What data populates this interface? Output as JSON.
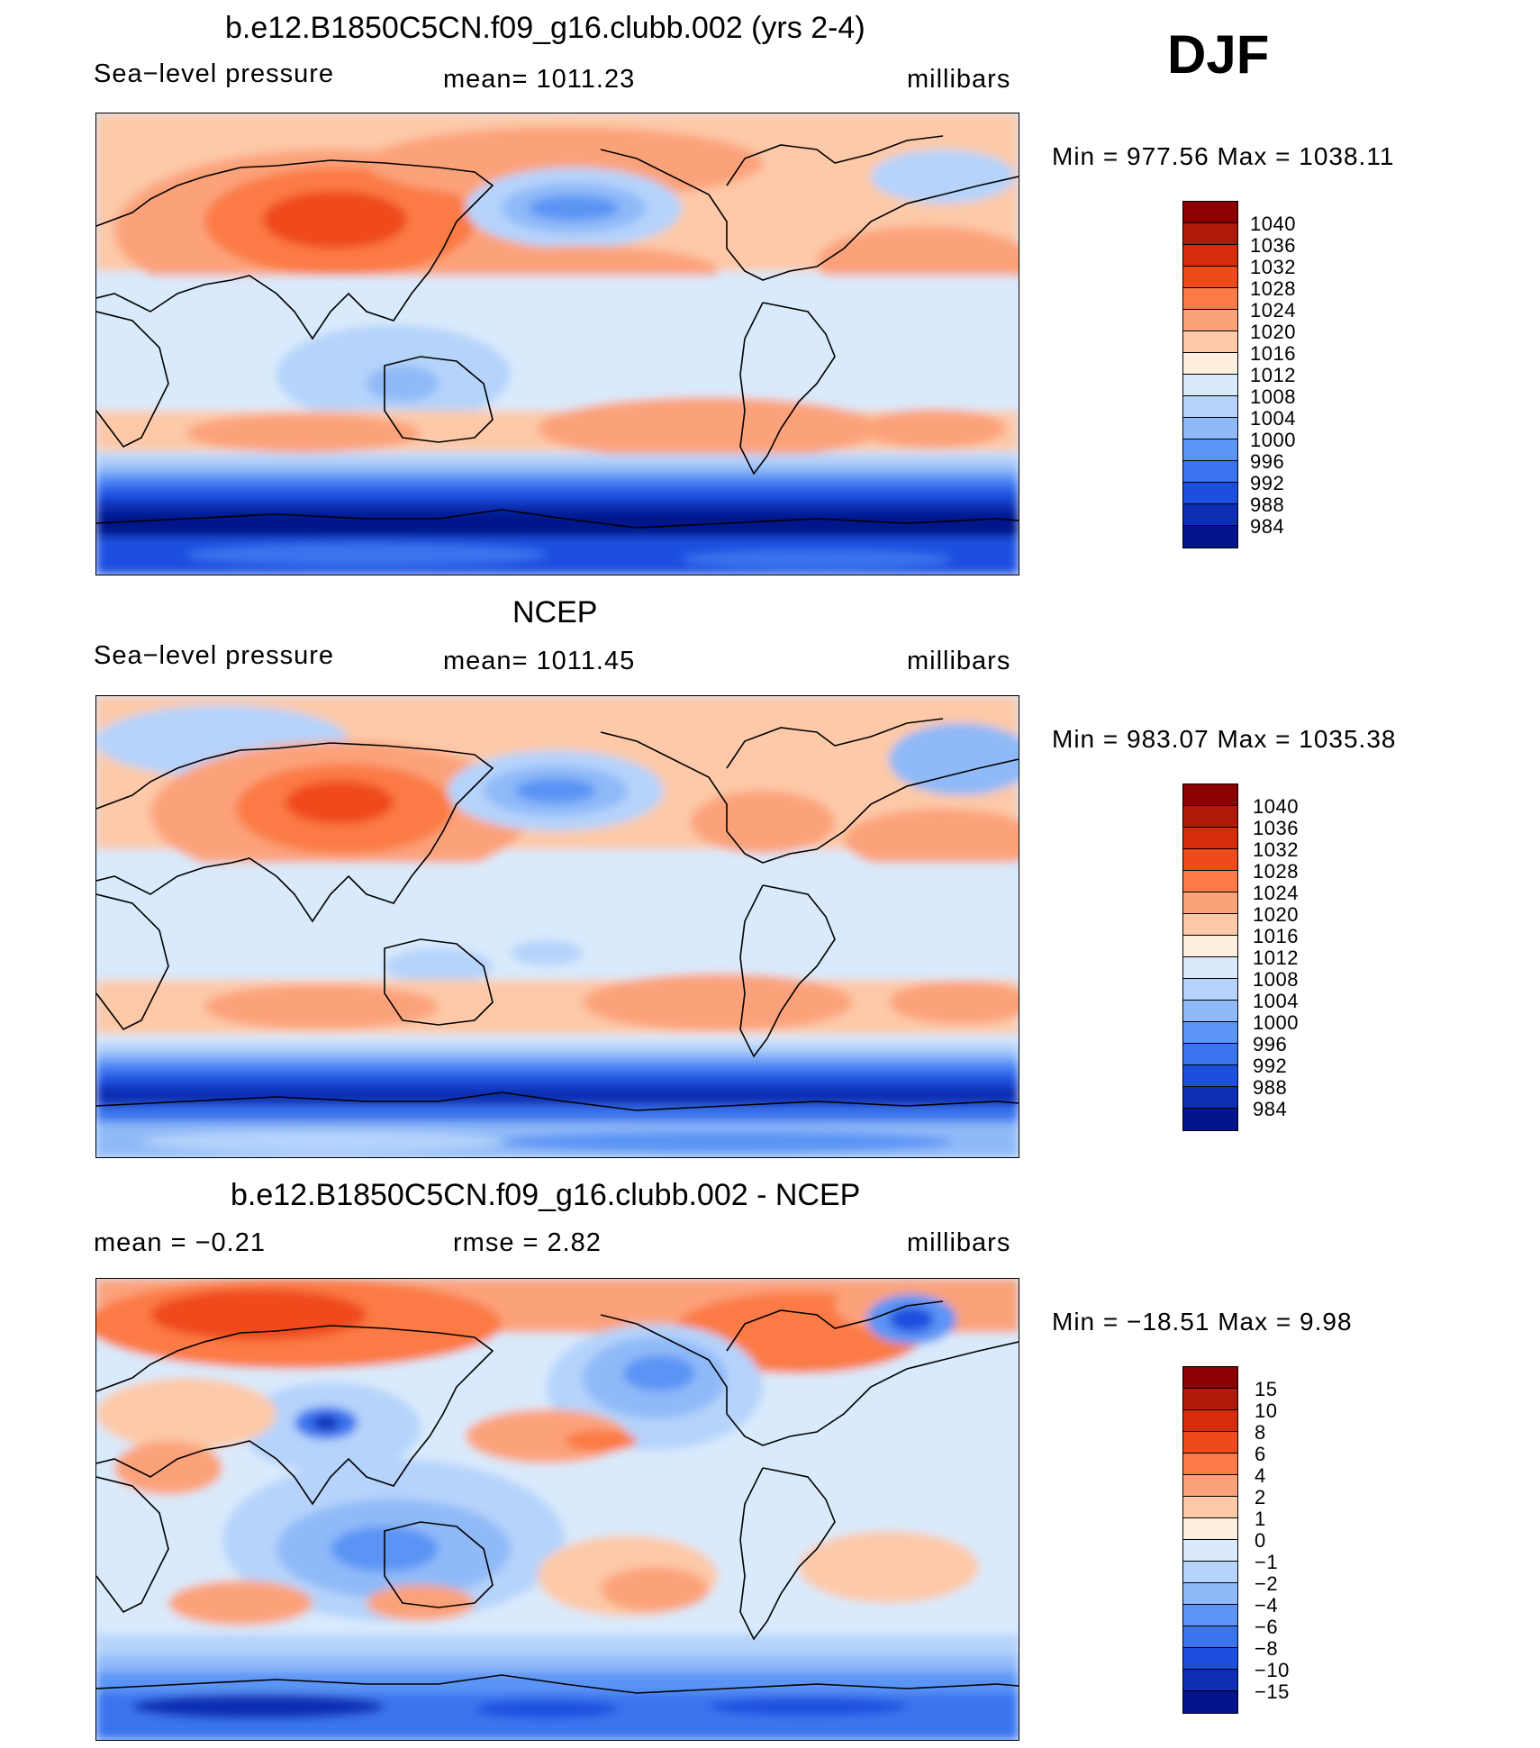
{
  "season": "DJF",
  "panels": [
    {
      "title": "b.e12.B1850C5CN.f09_g16.clubb.002 (yrs 2-4)",
      "left_label": "Sea−level pressure",
      "center_label": "mean=  1011.23",
      "units": "millibars",
      "minmax": "Min  =  977.56  Max  =  1038.11",
      "colorbar": {
        "colors": [
          "#8b0000",
          "#b01a0a",
          "#d52d0c",
          "#ef4a1c",
          "#fb7a45",
          "#fca27a",
          "#fdc9a8",
          "#feeede",
          "#d9eafc",
          "#b5d3fb",
          "#8fb9f8",
          "#5c94f5",
          "#3a74ee",
          "#1d4fdf",
          "#0d2fb4",
          "#04148a"
        ],
        "labels": [
          "1040",
          "1036",
          "1032",
          "1028",
          "1024",
          "1020",
          "1016",
          "1012",
          "1008",
          "1004",
          "1000",
          "996",
          "992",
          "988",
          "984"
        ]
      }
    },
    {
      "title": "NCEP",
      "left_label": "Sea−level pressure",
      "center_label": "mean=  1011.45",
      "units": "millibars",
      "minmax": "Min  =  983.07  Max  =  1035.38",
      "colorbar": {
        "colors": [
          "#8b0000",
          "#b01a0a",
          "#d52d0c",
          "#ef4a1c",
          "#fb7a45",
          "#fca27a",
          "#fdc9a8",
          "#feeede",
          "#d9eafc",
          "#b5d3fb",
          "#8fb9f8",
          "#5c94f5",
          "#3a74ee",
          "#1d4fdf",
          "#0d2fb4",
          "#04148a"
        ],
        "labels": [
          "1040",
          "1036",
          "1032",
          "1028",
          "1024",
          "1020",
          "1016",
          "1012",
          "1008",
          "1004",
          "1000",
          "996",
          "992",
          "988",
          "984"
        ]
      }
    },
    {
      "title": "b.e12.B1850C5CN.f09_g16.clubb.002 - NCEP",
      "left_label": "mean  =    −0.21",
      "center_label": "rmse  =     2.82",
      "units": "millibars",
      "minmax": "Min  =  −18.51  Max  =      9.98",
      "colorbar": {
        "colors": [
          "#8b0000",
          "#b01a0a",
          "#d52d0c",
          "#ef4a1c",
          "#fb7a45",
          "#fca27a",
          "#fdc9a8",
          "#feeede",
          "#d9eafc",
          "#b5d3fb",
          "#8fb9f8",
          "#5c94f5",
          "#3a74ee",
          "#1d4fdf",
          "#0d2fb4",
          "#04148a"
        ],
        "labels": [
          "15",
          "10",
          "8",
          "6",
          "4",
          "2",
          "1",
          "0",
          "−1",
          "−2",
          "−4",
          "−6",
          "−8",
          "−10",
          "−15"
        ]
      }
    }
  ]
}
